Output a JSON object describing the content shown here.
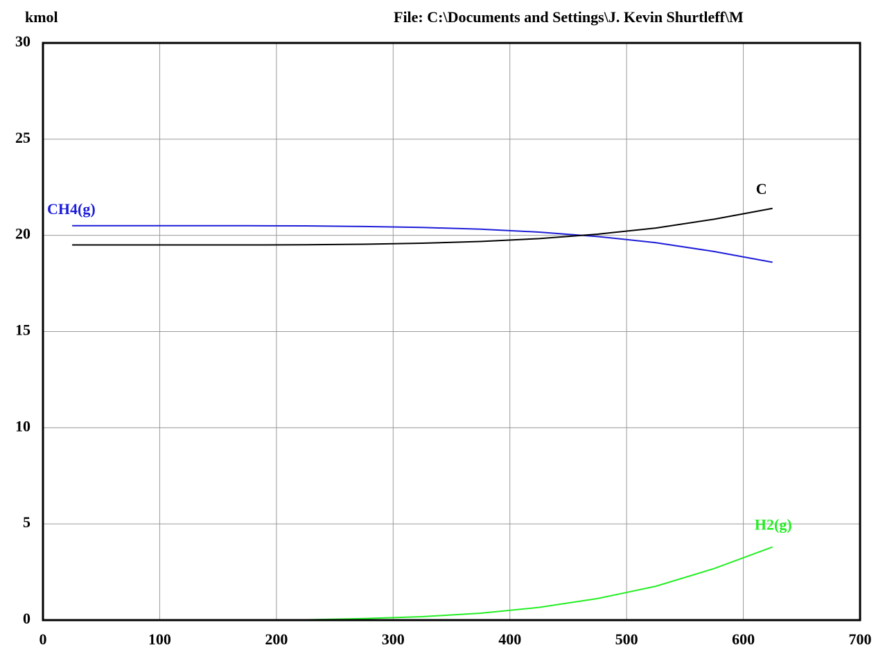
{
  "chart_data": {
    "type": "line",
    "y_axis_label": "kmol",
    "file_label": "File: C:\\Documents and Settings\\J. Kevin Shurtleff\\M",
    "x": [
      25,
      75,
      125,
      175,
      225,
      275,
      325,
      375,
      425,
      475,
      525,
      575,
      625
    ],
    "series": [
      {
        "name": "CH4(g)",
        "color": "#1c1cd8",
        "values": [
          20.5,
          20.5,
          20.5,
          20.5,
          20.49,
          20.46,
          20.41,
          20.32,
          20.17,
          19.94,
          19.62,
          19.16,
          18.6
        ]
      },
      {
        "name": "C",
        "color": "#000000",
        "values": [
          19.5,
          19.5,
          19.5,
          19.5,
          19.51,
          19.54,
          19.59,
          19.68,
          19.83,
          20.06,
          20.38,
          20.84,
          21.4
        ]
      },
      {
        "name": "H2(g)",
        "color": "#22ee22",
        "values": [
          0,
          0,
          0,
          0,
          0.02,
          0.08,
          0.18,
          0.36,
          0.66,
          1.12,
          1.76,
          2.68,
          3.8
        ]
      },
      {
        "color": "#20208a",
        "values": [
          0,
          0,
          0,
          0,
          0,
          0,
          0,
          0,
          0,
          0,
          0,
          0,
          0
        ]
      }
    ],
    "xlim": [
      0,
      700
    ],
    "xticks": [
      0,
      100,
      200,
      300,
      400,
      500,
      600,
      700
    ],
    "ylim": [
      0,
      30
    ],
    "yticks": [
      0,
      5,
      10,
      15,
      20,
      25,
      30
    ],
    "grid": true
  }
}
